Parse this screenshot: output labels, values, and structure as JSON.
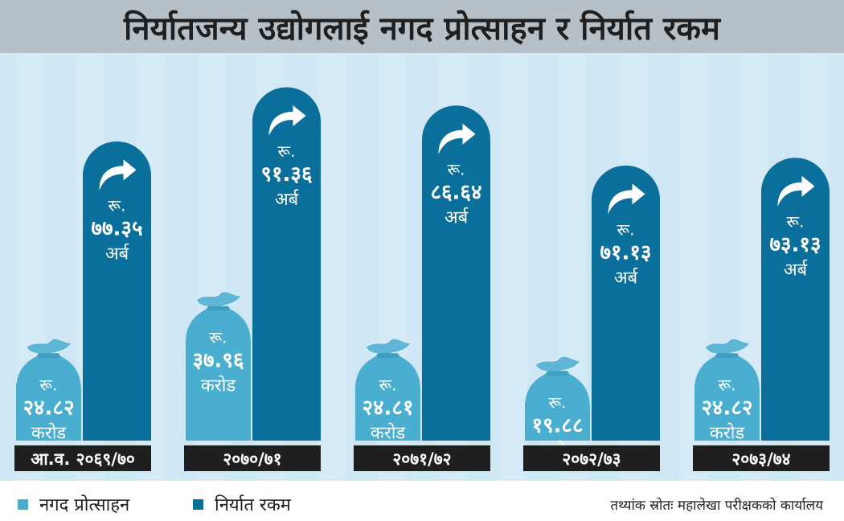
{
  "title": "निर्यातजन्य उद्योगलाई नगद प्रोत्साहन र निर्यात रकम",
  "legend": {
    "cash_label": "नगद प्रोत्साहन",
    "export_label": "निर्यात रकम"
  },
  "source": "तथ्यांक स्रोतः महालेखा परीक्षकको कार्यालय",
  "colors": {
    "background": "#cfe6f5",
    "cash": "#4aaed1",
    "export": "#0a6f9a",
    "bag": "#5fb5d6",
    "year_box": "#1f1f1f",
    "title_bar": "#b8c0c7"
  },
  "icons": {
    "export_bar_top": "curved-arrow-icon",
    "cash_bar_top": "money-bag-icon"
  },
  "chart_data": {
    "type": "bar",
    "categories": [
      "आ.व. २०६९/७०",
      "२०७०/७१",
      "२०७१/७२",
      "२०७२/७३",
      "२०७३/७४"
    ],
    "series": [
      {
        "name": "नगद प्रोत्साहन",
        "unit": "करोड",
        "values": [
          24.82,
          37.96,
          24.81,
          19.88,
          24.82
        ],
        "labels": [
          "२४.८२",
          "३७.९६",
          "२४.८१",
          "१९.८८",
          "२४.८२"
        ],
        "prefix": "रू.",
        "unit_label": "करोड"
      },
      {
        "name": "निर्यात रकम",
        "unit": "अर्ब",
        "values": [
          77.35,
          91.36,
          86.64,
          71.13,
          73.13
        ],
        "labels": [
          "७७.३५",
          "९१.३६",
          "८६.६४",
          "७१.१३",
          "७३.१३"
        ],
        "prefix": "रू.",
        "unit_label": "अर्ब"
      }
    ]
  }
}
